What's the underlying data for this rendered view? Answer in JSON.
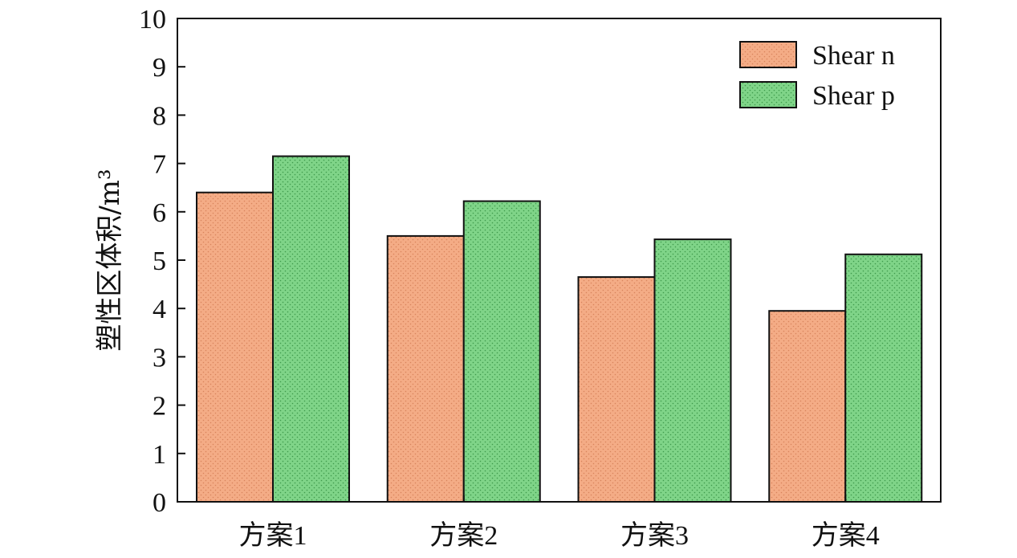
{
  "chart_data": {
    "type": "bar",
    "categories": [
      "方案1",
      "方案2",
      "方案3",
      "方案4"
    ],
    "series": [
      {
        "name": "Shear n",
        "values": [
          6.4,
          5.5,
          4.65,
          3.95
        ],
        "color": "#f4ac86"
      },
      {
        "name": "Shear p",
        "values": [
          7.15,
          6.22,
          5.43,
          5.12
        ],
        "color": "#7fd488"
      }
    ],
    "title": "",
    "xlabel": "",
    "ylabel": "塑性区体积/m³",
    "ylim": [
      0,
      10
    ],
    "yticks": [
      0,
      1,
      2,
      3,
      4,
      5,
      6,
      7,
      8,
      9,
      10
    ],
    "grid": false,
    "legend_position": "top-right"
  }
}
